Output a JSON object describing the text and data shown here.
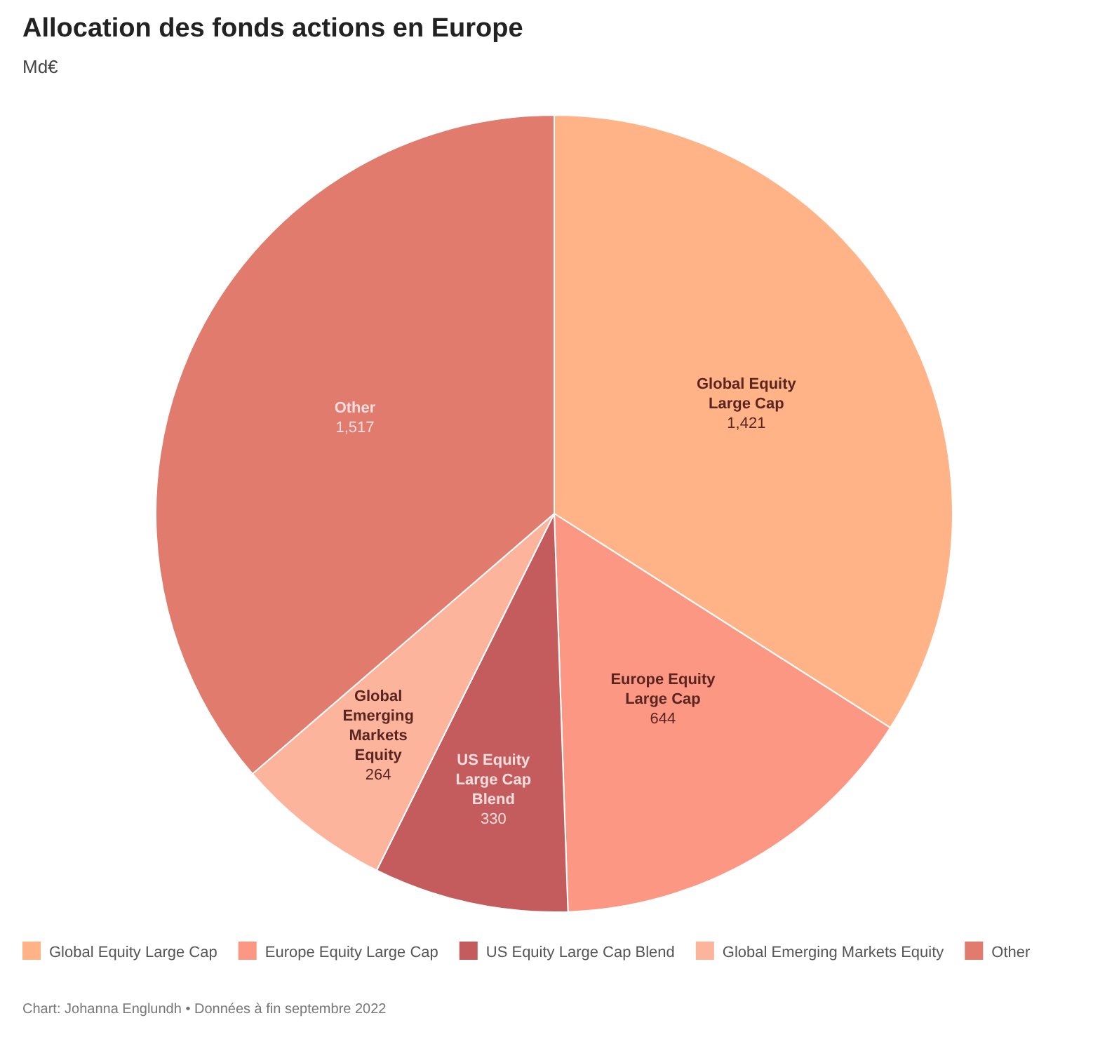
{
  "chart_data": {
    "type": "pie",
    "title": "Allocation des fonds actions en Europe",
    "subtitle": "Md€",
    "categories": [
      "Global Equity Large Cap",
      "Europe Equity Large Cap",
      "US Equity Large Cap Blend",
      "Global Emerging Markets Equity",
      "Other"
    ],
    "values": [
      1421,
      644,
      330,
      264,
      1517
    ],
    "colors": [
      "#ffb387",
      "#fc9783",
      "#c45c5e",
      "#fdb49c",
      "#e07b6d"
    ],
    "value_labels": [
      "1,421",
      "644",
      "330",
      "264",
      "1,517"
    ],
    "legend": "bottom",
    "annotations": [
      "Chart: Johanna Englundh • Données à fin septembre 2022"
    ]
  }
}
